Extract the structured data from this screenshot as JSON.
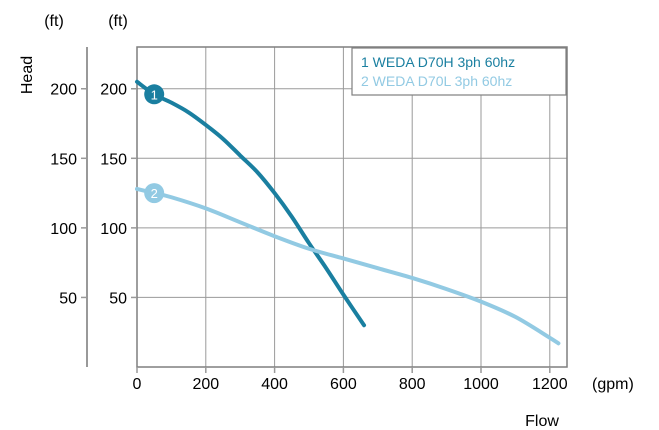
{
  "chart_data": {
    "type": "line",
    "xlabel": "Flow",
    "x_unit": "(gpm)",
    "ylabel": "Head",
    "y_unit_left": "(ft)",
    "y_unit_right": "(ft)",
    "xlim": [
      0,
      1250
    ],
    "ylim": [
      0,
      230
    ],
    "x_ticks": [
      "0",
      "200",
      "400",
      "600",
      "800",
      "1000",
      "1200"
    ],
    "x_tick_values": [
      0,
      200,
      400,
      600,
      800,
      1000,
      1200
    ],
    "y_ticks_left": [
      "200",
      "150",
      "100",
      "50"
    ],
    "y_ticks_right": [
      "200",
      "150",
      "100",
      "50"
    ],
    "y_tick_values": [
      200,
      150,
      100,
      50
    ],
    "grid": true,
    "legend_position": "top-right",
    "series": [
      {
        "name": "1 WEDA D70H 3ph 60hz",
        "marker_label": "1",
        "color": "#1a7fa0",
        "x": [
          0,
          50,
          100,
          150,
          200,
          250,
          300,
          350,
          400,
          450,
          500,
          550,
          600,
          660
        ],
        "y": [
          205,
          196,
          190,
          183,
          174,
          164,
          152,
          140,
          125,
          108,
          89,
          71,
          52,
          30
        ]
      },
      {
        "name": "2 WEDA D70L 3ph 60hz",
        "marker_label": "2",
        "color": "#92cae3",
        "x": [
          0,
          50,
          100,
          200,
          300,
          400,
          500,
          600,
          700,
          800,
          900,
          1000,
          1100,
          1200,
          1225
        ],
        "y": [
          128,
          125,
          122,
          114,
          104,
          94,
          85,
          78,
          71,
          64,
          56,
          47,
          36,
          21,
          17
        ]
      }
    ]
  }
}
